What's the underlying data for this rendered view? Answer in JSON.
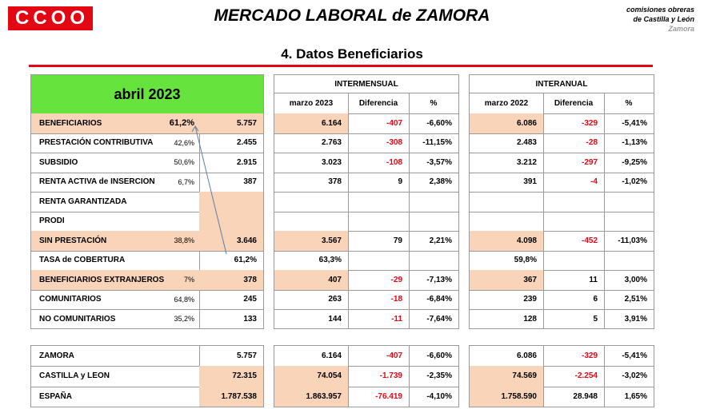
{
  "header": {
    "logo": [
      "C",
      "C",
      "O",
      "O"
    ],
    "title": "MERCADO LABORAL de ZAMORA",
    "org_line1": "comisiones obreras",
    "org_line2": "de Castilla y León",
    "org_line3": "Zamora",
    "subtitle": "4.  Datos Beneficiarios"
  },
  "colors": {
    "accent": "#e30613",
    "highlight": "#f9d4b9",
    "month_bg": "#66e33c"
  },
  "table": {
    "month": "abril 2023",
    "intermensual": "INTERMENSUAL",
    "interanual": "INTERANUAL",
    "col_prev_month": "marzo 2023",
    "col_prev_year": "marzo 2022",
    "col_diff": "Diferencia",
    "col_pct": "%",
    "rows": [
      {
        "label": "BENEFICIARIOS",
        "share": "61,2%",
        "value": "5.757",
        "m": "6.164",
        "md": "-407",
        "mp": "-6,60%",
        "y": "6.086",
        "yd": "-329",
        "yp": "-5,41%"
      },
      {
        "label": "PRESTACIÓN CONTRIBUTIVA",
        "share": "42,6%",
        "value": "2.455",
        "m": "2.763",
        "md": "-308",
        "mp": "-11,15%",
        "y": "2.483",
        "yd": "-28",
        "yp": "-1,13%"
      },
      {
        "label": "SUBSIDIO",
        "share": "50,6%",
        "value": "2.915",
        "m": "3.023",
        "md": "-108",
        "mp": "-3,57%",
        "y": "3.212",
        "yd": "-297",
        "yp": "-9,25%"
      },
      {
        "label": "RENTA ACTIVA de INSERCION",
        "share": "6,7%",
        "value": "387",
        "m": "378",
        "md": "9",
        "mp": "2,38%",
        "y": "391",
        "yd": "-4",
        "yp": "-1,02%"
      },
      {
        "label": "RENTA GARANTIZADA",
        "share": "",
        "value": "",
        "m": "",
        "md": "",
        "mp": "",
        "y": "",
        "yd": "",
        "yp": ""
      },
      {
        "label": "PRODI",
        "share": "",
        "value": "",
        "m": "",
        "md": "",
        "mp": "",
        "y": "",
        "yd": "",
        "yp": ""
      },
      {
        "label": "SIN PRESTACIÓN",
        "share": "38,8%",
        "value": "3.646",
        "m": "3.567",
        "md": "79",
        "mp": "2,21%",
        "y": "4.098",
        "yd": "-452",
        "yp": "-11,03%"
      },
      {
        "label": "TASA de COBERTURA",
        "share": "",
        "value": "61,2%",
        "m": "63,3%",
        "md": "",
        "mp": "",
        "y": "59,8%",
        "yd": "",
        "yp": ""
      },
      {
        "label": "BENEFICIARIOS EXTRANJEROS",
        "share": "7%",
        "value": "378",
        "m": "407",
        "md": "-29",
        "mp": "-7,13%",
        "y": "367",
        "yd": "11",
        "yp": "3,00%"
      },
      {
        "label": "COMUNITARIOS",
        "share": "64,8%",
        "value": "245",
        "m": "263",
        "md": "-18",
        "mp": "-6,84%",
        "y": "239",
        "yd": "6",
        "yp": "2,51%"
      },
      {
        "label": "NO COMUNITARIOS",
        "share": "35,2%",
        "value": "133",
        "m": "144",
        "md": "-11",
        "mp": "-7,64%",
        "y": "128",
        "yd": "5",
        "yp": "3,91%"
      }
    ],
    "regions": [
      {
        "label": "ZAMORA",
        "value": "5.757",
        "m": "6.164",
        "md": "-407",
        "mp": "-6,60%",
        "y": "6.086",
        "yd": "-329",
        "yp": "-5,41%"
      },
      {
        "label": "CASTILLA y LEON",
        "value": "72.315",
        "m": "74.054",
        "md": "-1.739",
        "mp": "-2,35%",
        "y": "74.569",
        "yd": "-2.254",
        "yp": "-3,02%"
      },
      {
        "label": "ESPAÑA",
        "value": "1.787.538",
        "m": "1.863.957",
        "md": "-76.419",
        "mp": "-4,10%",
        "y": "1.758.590",
        "yd": "28.948",
        "yp": "1,65%"
      }
    ]
  }
}
